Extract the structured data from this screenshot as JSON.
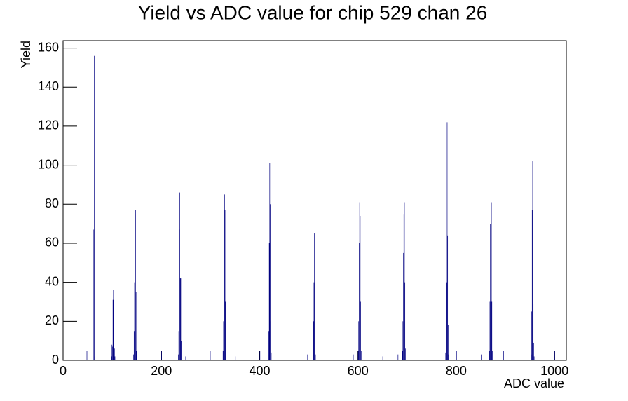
{
  "chart_data": {
    "type": "histogram",
    "title": "Yield vs ADC value for chip 529 chan 26",
    "x_label": "ADC value",
    "y_label": "Yield",
    "color": "#000080",
    "x": [
      48,
      62,
      63,
      64,
      98,
      99,
      100,
      101,
      102,
      103,
      104,
      105,
      143,
      144,
      145,
      146,
      147,
      148,
      149,
      150,
      200,
      234,
      235,
      236,
      237,
      238,
      239,
      240,
      241,
      249,
      299,
      325,
      326,
      327,
      328,
      329,
      330,
      331,
      350,
      400,
      417,
      418,
      419,
      420,
      421,
      422,
      423,
      497,
      508,
      509,
      510,
      511,
      512,
      513,
      590,
      600,
      601,
      602,
      603,
      604,
      605,
      606,
      650,
      681,
      690,
      691,
      692,
      693,
      694,
      695,
      696,
      778,
      779,
      780,
      781,
      782,
      783,
      784,
      800,
      850,
      867,
      868,
      869,
      870,
      871,
      872,
      873,
      896,
      952,
      953,
      954,
      955,
      956,
      957,
      958,
      1000
    ],
    "values": [
      5,
      67,
      156,
      2,
      2,
      8,
      7,
      31,
      36,
      16,
      6,
      2,
      3,
      15,
      40,
      75,
      77,
      35,
      5,
      1,
      5,
      3,
      15,
      67,
      86,
      42,
      42,
      10,
      2,
      2,
      5,
      5,
      20,
      42,
      85,
      77,
      30,
      5,
      2,
      5,
      3,
      15,
      60,
      101,
      80,
      20,
      4,
      3,
      3,
      20,
      40,
      65,
      20,
      3,
      3,
      5,
      20,
      60,
      81,
      74,
      30,
      5,
      2,
      3,
      5,
      20,
      55,
      75,
      81,
      40,
      6,
      4,
      41,
      40,
      122,
      64,
      18,
      3,
      5,
      3,
      5,
      30,
      70,
      95,
      81,
      30,
      5,
      5,
      3,
      25,
      77,
      102,
      29,
      9,
      2,
      5
    ],
    "xlim": [
      0,
      1024
    ],
    "xticks": [
      0,
      200,
      400,
      600,
      800,
      1000
    ],
    "ylim": [
      0,
      163.8
    ],
    "yticks": [
      0,
      20,
      40,
      60,
      80,
      100,
      120,
      140,
      160
    ]
  }
}
